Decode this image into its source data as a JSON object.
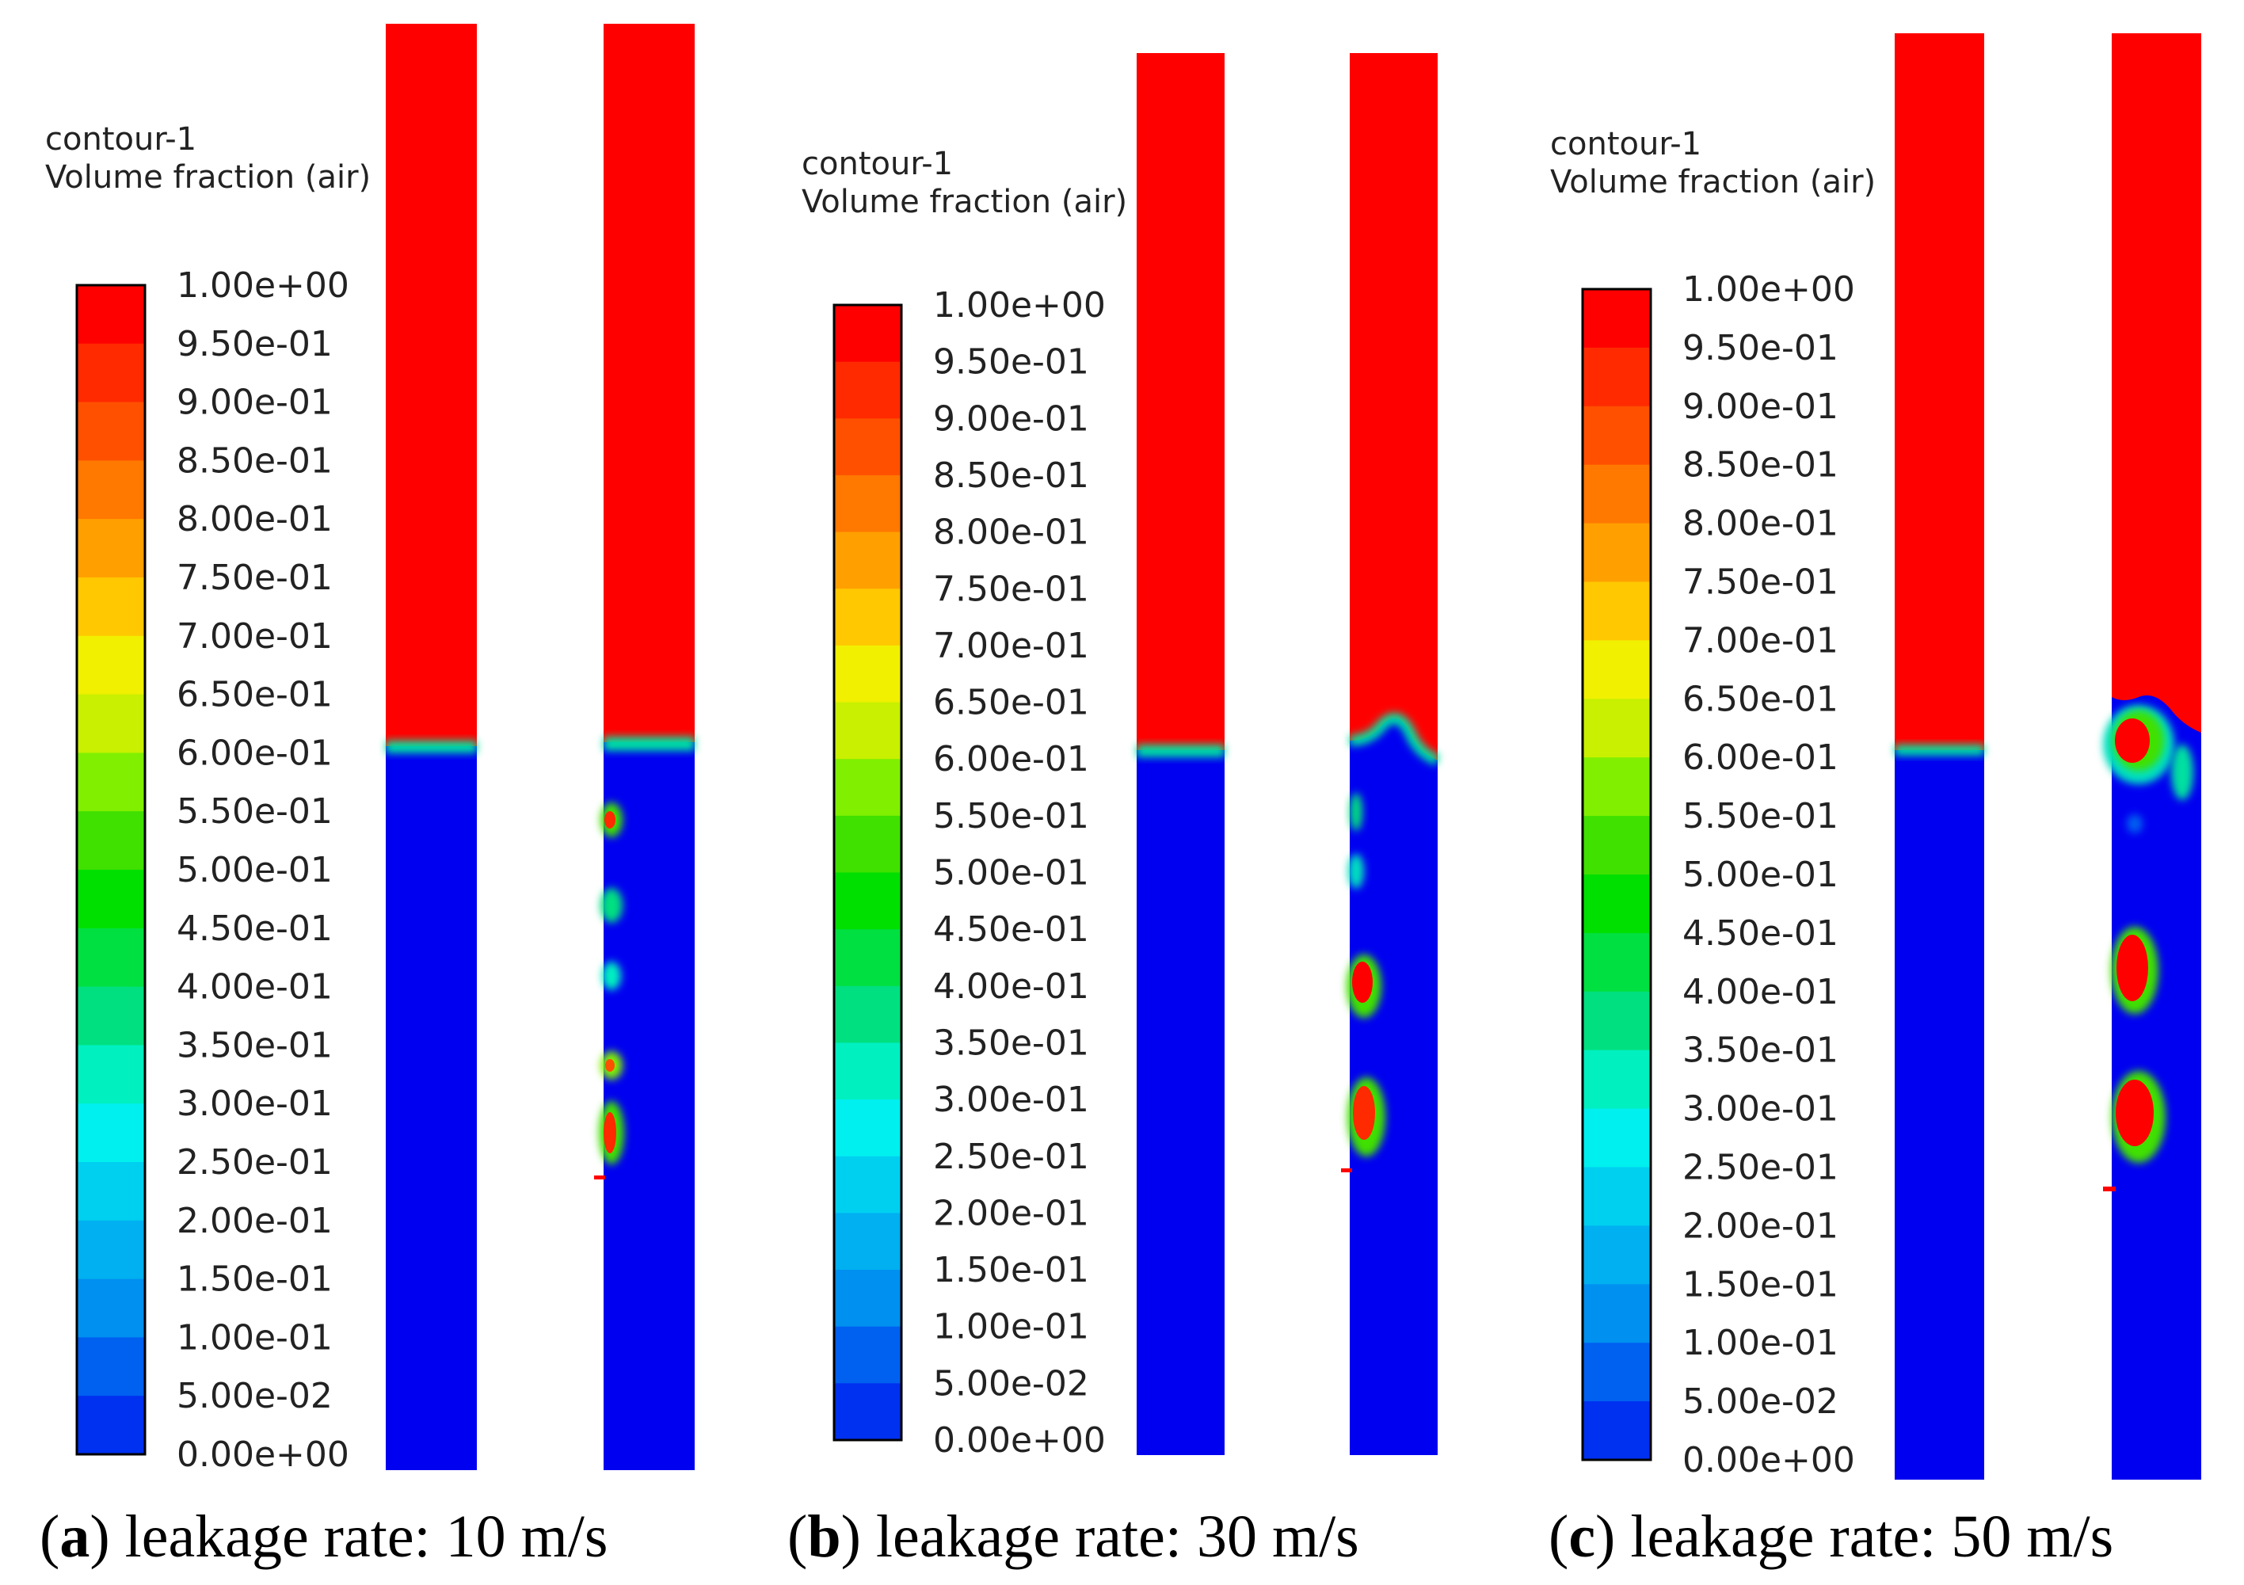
{
  "panels": [
    {
      "id": "a",
      "title_line1": "contour-1",
      "title_line2": "Volume fraction (air)",
      "caption_letter": "a",
      "caption_text": "leakage rate: 10 m/s"
    },
    {
      "id": "b",
      "title_line1": "contour-1",
      "title_line2": "Volume fraction (air)",
      "caption_letter": "b",
      "caption_text": "leakage rate: 30 m/s"
    },
    {
      "id": "c",
      "title_line1": "contour-1",
      "title_line2": "Volume fraction (air)",
      "caption_letter": "c",
      "caption_text": "leakage rate: 50 m/s"
    }
  ],
  "legend": {
    "labels": [
      "1.00e+00",
      "9.50e-01",
      "9.00e-01",
      "8.50e-01",
      "8.00e-01",
      "7.50e-01",
      "7.00e-01",
      "6.50e-01",
      "6.00e-01",
      "5.50e-01",
      "5.00e-01",
      "4.50e-01",
      "4.00e-01",
      "3.50e-01",
      "3.00e-01",
      "2.50e-01",
      "2.00e-01",
      "1.50e-01",
      "1.00e-01",
      "5.00e-02",
      "0.00e+00"
    ],
    "colors": [
      "#ff0000",
      "#ff2a00",
      "#ff5000",
      "#ff7800",
      "#ffa000",
      "#ffc800",
      "#f0f000",
      "#c8f000",
      "#80f000",
      "#40e000",
      "#00e000",
      "#00e040",
      "#00e080",
      "#00f0c0",
      "#00f0f0",
      "#00d0f0",
      "#00b0f0",
      "#0090f0",
      "#0060f0",
      "#0030f0",
      "#0000f0"
    ]
  },
  "colors": {
    "air": "#ff0000",
    "water": "#0000f0"
  }
}
